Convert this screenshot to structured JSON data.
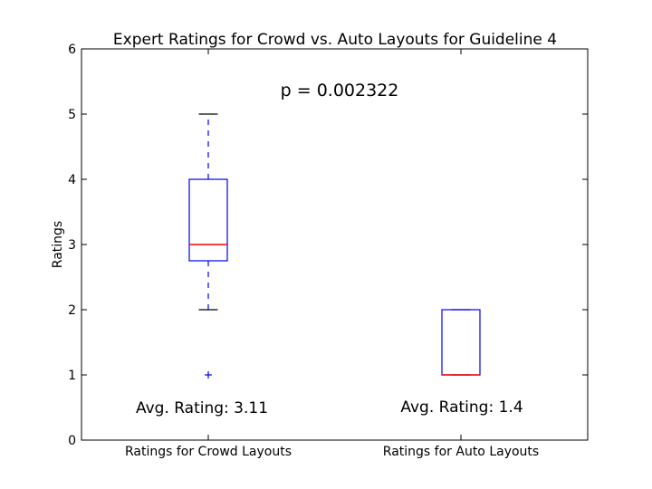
{
  "chart_data": {
    "type": "boxplot",
    "title": "Expert Ratings for Crowd vs. Auto Layouts for Guideline 4",
    "xlabel": "",
    "ylabel": "Ratings",
    "ylim": [
      0,
      6
    ],
    "yticks": [
      "0",
      "1",
      "2",
      "3",
      "4",
      "5",
      "6"
    ],
    "categories": [
      "Ratings for Crowd Layouts",
      "Ratings for Auto Layouts"
    ],
    "boxes": [
      {
        "whisker_low": 2,
        "q1": 2.75,
        "median": 3,
        "q3": 4,
        "whisker_high": 5,
        "outliers": [
          1
        ]
      },
      {
        "whisker_low": 1,
        "q1": 1,
        "median": 1,
        "q3": 2,
        "whisker_high": 2,
        "outliers": []
      }
    ],
    "annotations": {
      "p_value": "p = 0.002322",
      "avg_labels": [
        "Avg. Rating: 3.11",
        "Avg. Rating: 1.4"
      ]
    },
    "colors": {
      "box": "#0000ff",
      "median": "#ff0000",
      "whisker_cap": "#000000",
      "outlier": "#0000ff"
    },
    "grid": false
  }
}
